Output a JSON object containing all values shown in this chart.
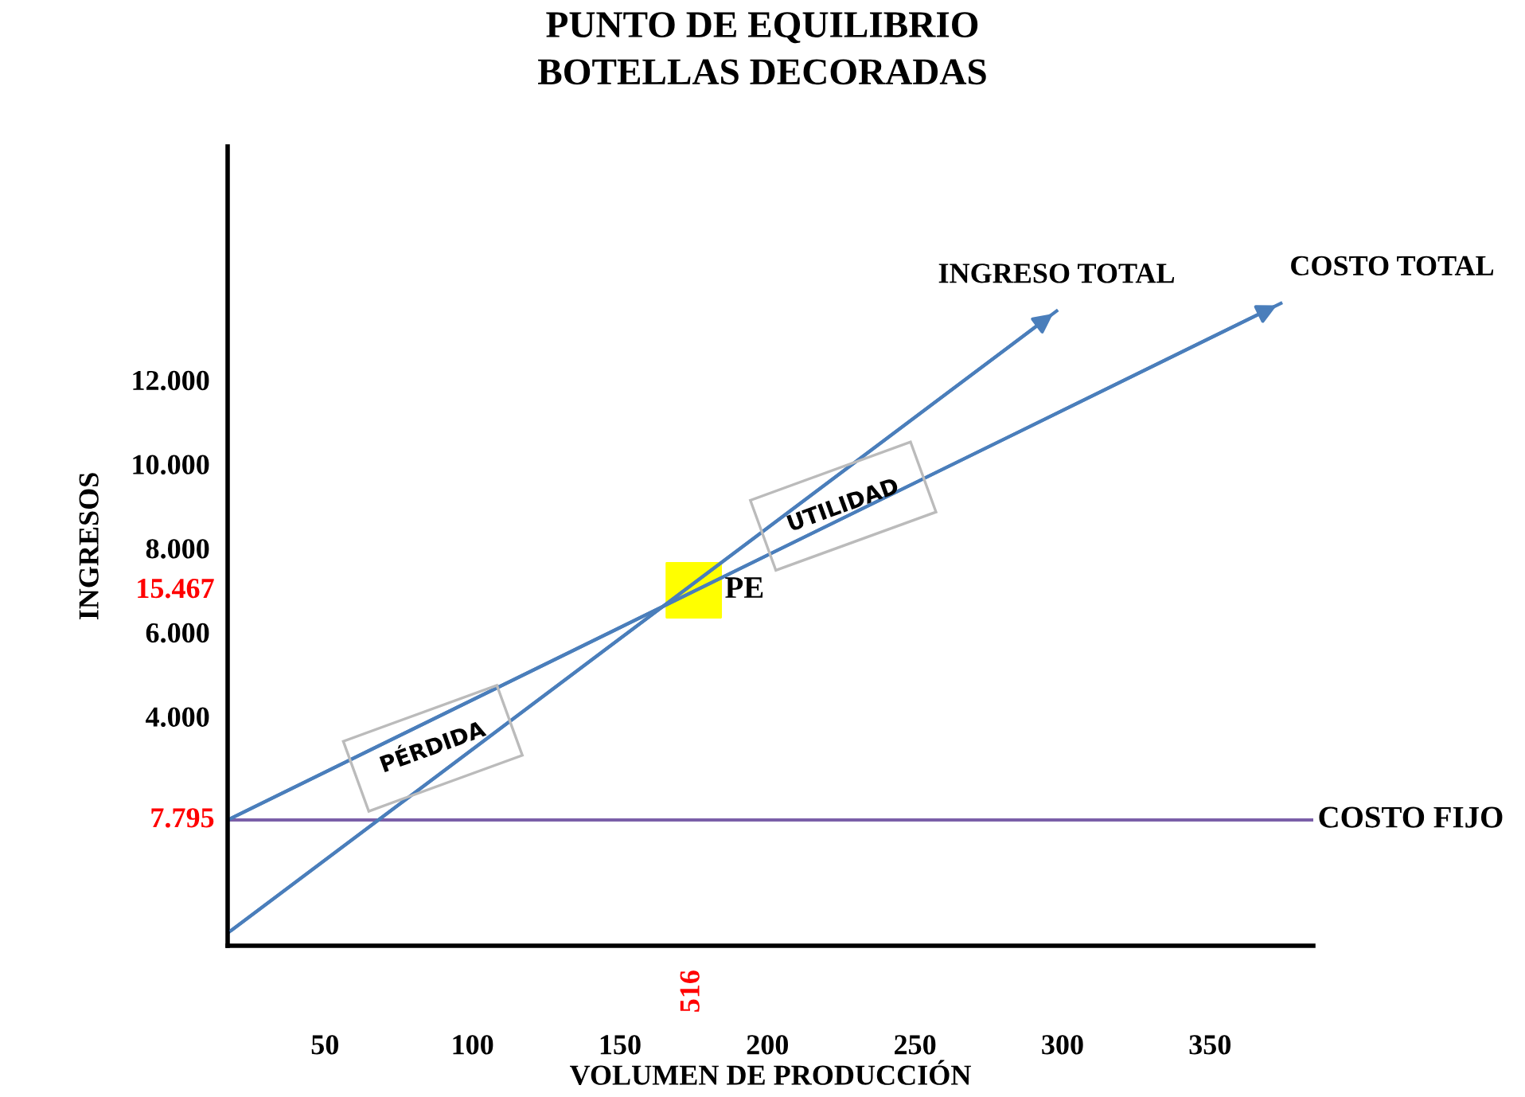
{
  "chart_data": {
    "type": "line",
    "title": "PUNTO DE EQUILIBRIO\nBOTELLAS DECORADAS",
    "xlabel": "VOLUMEN DE PRODUCCIÓN",
    "ylabel": "INGRESOS",
    "xlim": [
      17,
      385
    ],
    "ylim": [
      -1450,
      17550
    ],
    "xticks": [
      50,
      100,
      150,
      200,
      250,
      300,
      350
    ],
    "yticks": [
      {
        "value": 4000,
        "label": "4.000"
      },
      {
        "value": 6000,
        "label": "6.000"
      },
      {
        "value": 8000,
        "label": "8.000"
      },
      {
        "value": 10000,
        "label": "10.000"
      },
      {
        "value": 12000,
        "label": "12.000"
      }
    ],
    "series": [
      {
        "name": "INGRESO TOTAL",
        "color": "#4a7ebb",
        "x": [
          17,
          298
        ],
        "values": [
          -1150,
          13640
        ]
      },
      {
        "name": "COSTO TOTAL",
        "color": "#4a7ebb",
        "x": [
          17,
          374
        ],
        "values": [
          1540,
          13820
        ]
      },
      {
        "name": "PE",
        "type": "scatter",
        "marker": "square",
        "color": "#ffff00",
        "x": [
          175
        ],
        "values": [
          7000
        ]
      }
    ],
    "ref_lines": [
      {
        "axis": "y",
        "value": 1540,
        "label": "COSTO FIJO",
        "color": "#7a5fa8"
      }
    ],
    "annotations": [
      "PÉRDIDA",
      "UTILIDAD",
      "516",
      "15.467",
      "7.795"
    ],
    "grid": false,
    "legend": false
  }
}
